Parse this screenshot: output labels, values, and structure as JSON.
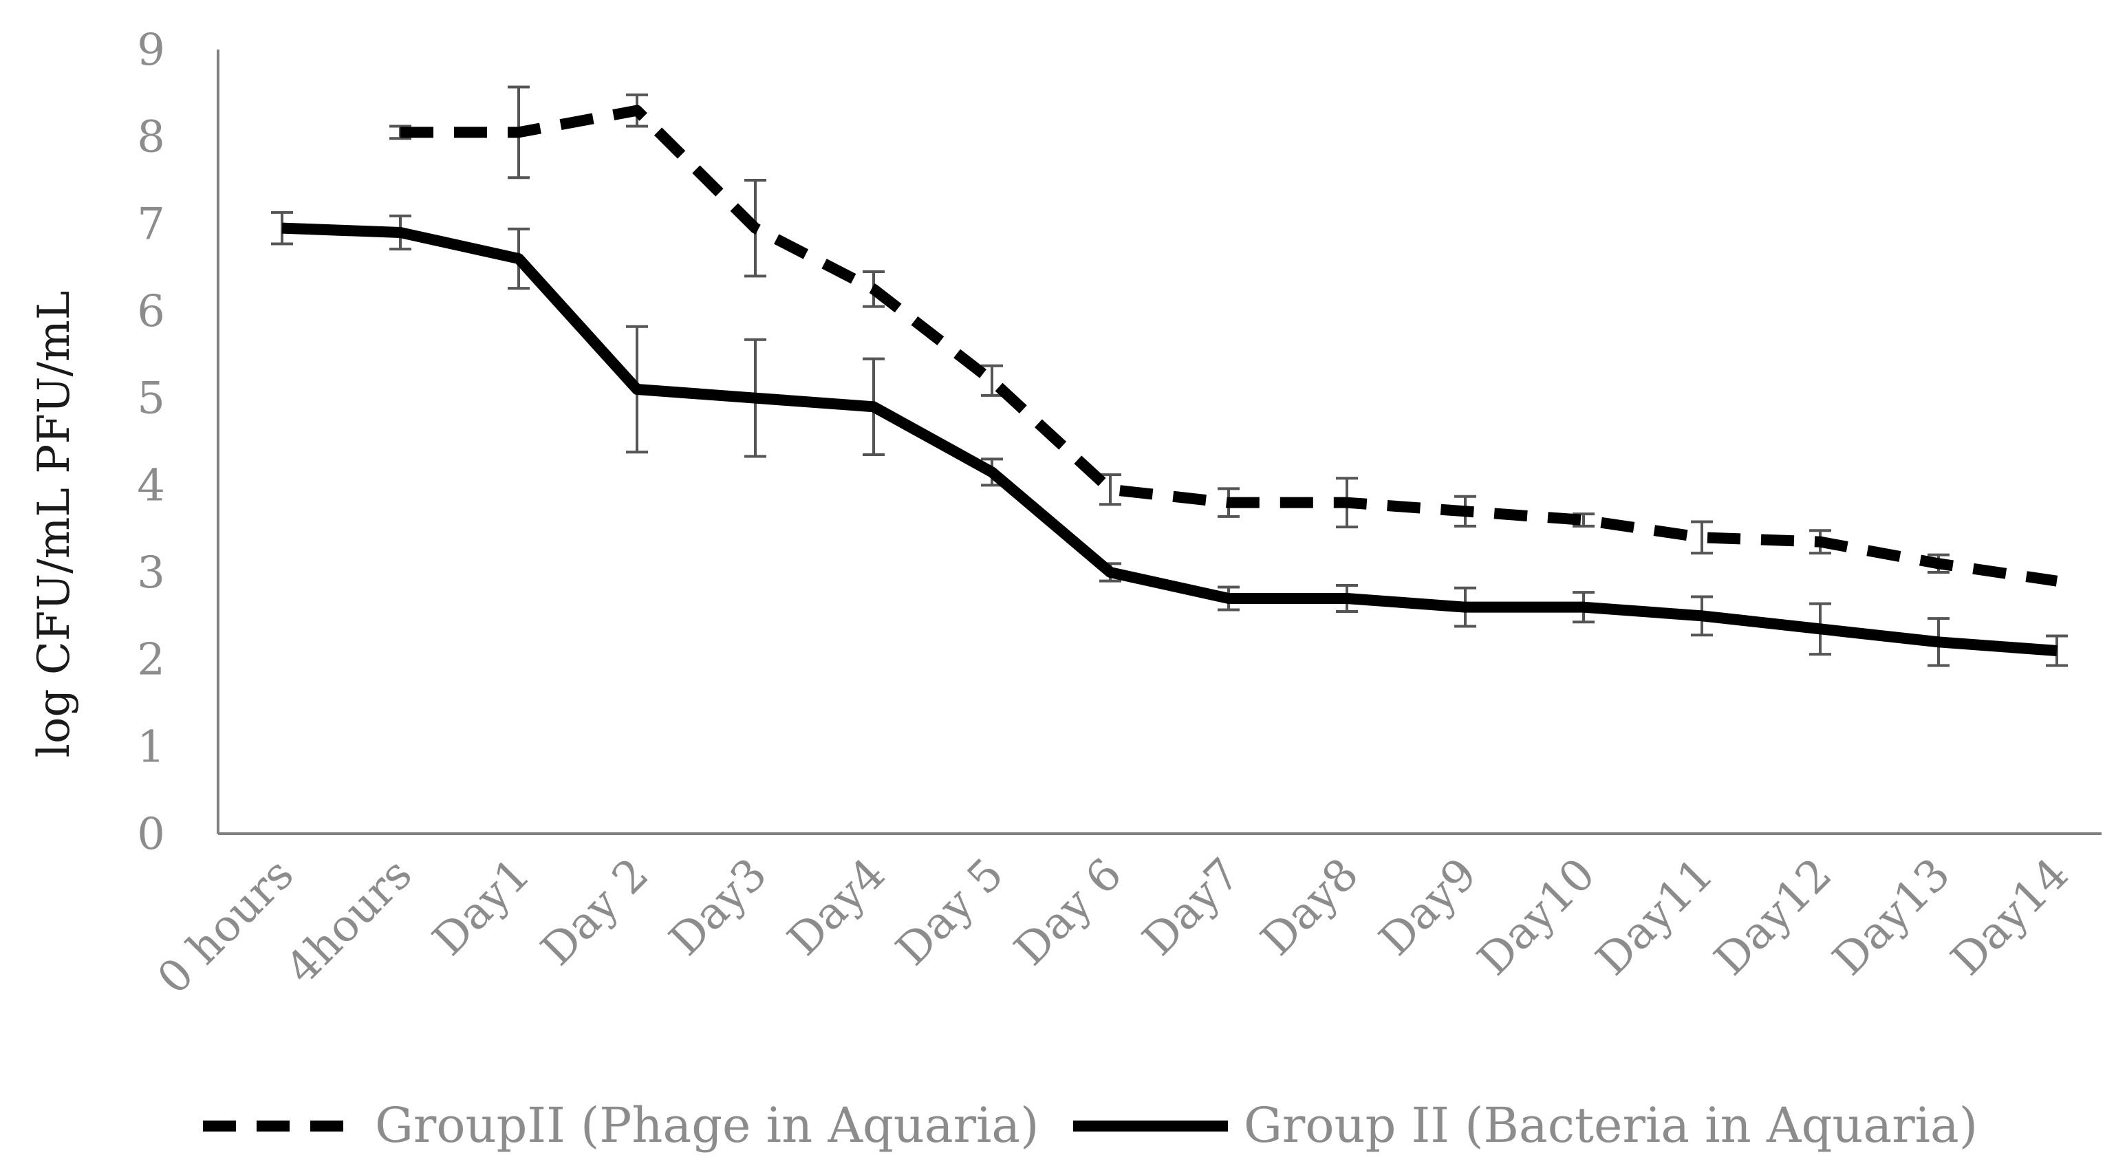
{
  "chart_data": {
    "type": "line",
    "title": "",
    "xlabel": "",
    "ylabel": "log CFU/mL PFU/mL",
    "ylim": [
      0,
      9
    ],
    "yticks": [
      0,
      1,
      2,
      3,
      4,
      5,
      6,
      7,
      8,
      9
    ],
    "grid": false,
    "legend_position": "bottom",
    "categories": [
      "0 hours",
      "4hours",
      "Day1",
      "Day 2",
      "Day3",
      "Day4",
      "Day 5",
      "Day 6",
      "Day7",
      "Day8",
      "Day9",
      "Day10",
      "Day11",
      "Day12",
      "Day13",
      "Day14"
    ],
    "series": [
      {
        "name": "GroupII (Phage in Aquaria)",
        "style": "dashed",
        "color": "#000000",
        "values": [
          null,
          8.05,
          8.05,
          8.3,
          6.95,
          6.25,
          5.2,
          3.95,
          3.8,
          3.8,
          3.7,
          3.6,
          3.4,
          3.35,
          3.1,
          2.9
        ],
        "errors": [
          null,
          0.07,
          0.52,
          0.18,
          0.55,
          0.2,
          0.17,
          0.17,
          0.16,
          0.28,
          0.17,
          0.07,
          0.18,
          0.13,
          0.1,
          0.0
        ]
      },
      {
        "name": "Group II (Bacteria in Aquaria)",
        "style": "solid",
        "color": "#000000",
        "values": [
          6.95,
          6.9,
          6.6,
          5.1,
          5.0,
          4.9,
          4.15,
          3.0,
          2.7,
          2.7,
          2.6,
          2.6,
          2.5,
          2.35,
          2.2,
          2.1
        ],
        "errors": [
          0.18,
          0.19,
          0.34,
          0.72,
          0.67,
          0.55,
          0.15,
          0.1,
          0.13,
          0.15,
          0.22,
          0.17,
          0.22,
          0.29,
          0.27,
          0.17
        ]
      }
    ]
  }
}
